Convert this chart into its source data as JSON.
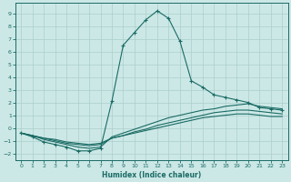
{
  "xlabel": "Humidex (Indice chaleur)",
  "xlim": [
    -0.5,
    23.5
  ],
  "ylim": [
    -2.5,
    9.8
  ],
  "xticks": [
    0,
    1,
    2,
    3,
    4,
    5,
    6,
    7,
    8,
    9,
    10,
    11,
    12,
    13,
    14,
    15,
    16,
    17,
    18,
    19,
    20,
    21,
    22,
    23
  ],
  "yticks": [
    -2,
    -1,
    0,
    1,
    2,
    3,
    4,
    5,
    6,
    7,
    8,
    9
  ],
  "background_color": "#cce8e6",
  "grid_color": "#aacfcc",
  "line_color": "#1a6b65",
  "curves": [
    {
      "x": [
        0,
        1,
        2,
        3,
        4,
        5,
        6,
        7,
        8,
        9,
        10,
        11,
        12,
        13,
        14,
        15,
        16,
        17,
        18,
        19,
        20,
        21,
        22,
        23
      ],
      "y": [
        -0.4,
        -0.7,
        -1.1,
        -1.3,
        -1.5,
        -1.8,
        -1.8,
        -1.6,
        2.1,
        6.5,
        7.5,
        8.5,
        9.2,
        8.6,
        6.8,
        3.7,
        3.2,
        2.6,
        2.4,
        2.2,
        2.0,
        1.6,
        1.5,
        1.4
      ],
      "marker": "+"
    },
    {
      "x": [
        0,
        1,
        2,
        3,
        4,
        5,
        6,
        7,
        8,
        9,
        10,
        11,
        12,
        13,
        14,
        15,
        16,
        17,
        18,
        19,
        20,
        21,
        22,
        23
      ],
      "y": [
        -0.4,
        -0.6,
        -0.9,
        -1.1,
        -1.3,
        -1.5,
        -1.6,
        -1.5,
        -0.7,
        -0.4,
        -0.1,
        0.2,
        0.5,
        0.8,
        1.0,
        1.2,
        1.4,
        1.5,
        1.7,
        1.8,
        1.9,
        1.7,
        1.6,
        1.5
      ],
      "marker": null
    },
    {
      "x": [
        0,
        1,
        2,
        3,
        4,
        5,
        6,
        7,
        8,
        9,
        10,
        11,
        12,
        13,
        14,
        15,
        16,
        17,
        18,
        19,
        20,
        21,
        22,
        23
      ],
      "y": [
        -0.4,
        -0.6,
        -0.8,
        -1.0,
        -1.2,
        -1.3,
        -1.4,
        -1.3,
        -0.8,
        -0.6,
        -0.3,
        -0.1,
        0.2,
        0.4,
        0.6,
        0.8,
        1.0,
        1.2,
        1.3,
        1.4,
        1.4,
        1.3,
        1.2,
        1.1
      ],
      "marker": null
    },
    {
      "x": [
        0,
        1,
        2,
        3,
        4,
        5,
        6,
        7,
        8,
        9,
        10,
        11,
        12,
        13,
        14,
        15,
        16,
        17,
        18,
        19,
        20,
        21,
        22,
        23
      ],
      "y": [
        -0.4,
        -0.6,
        -0.8,
        -0.9,
        -1.1,
        -1.2,
        -1.3,
        -1.2,
        -0.8,
        -0.6,
        -0.4,
        -0.2,
        0.0,
        0.2,
        0.4,
        0.6,
        0.8,
        0.9,
        1.0,
        1.1,
        1.1,
        1.0,
        0.9,
        0.9
      ],
      "marker": null
    }
  ]
}
